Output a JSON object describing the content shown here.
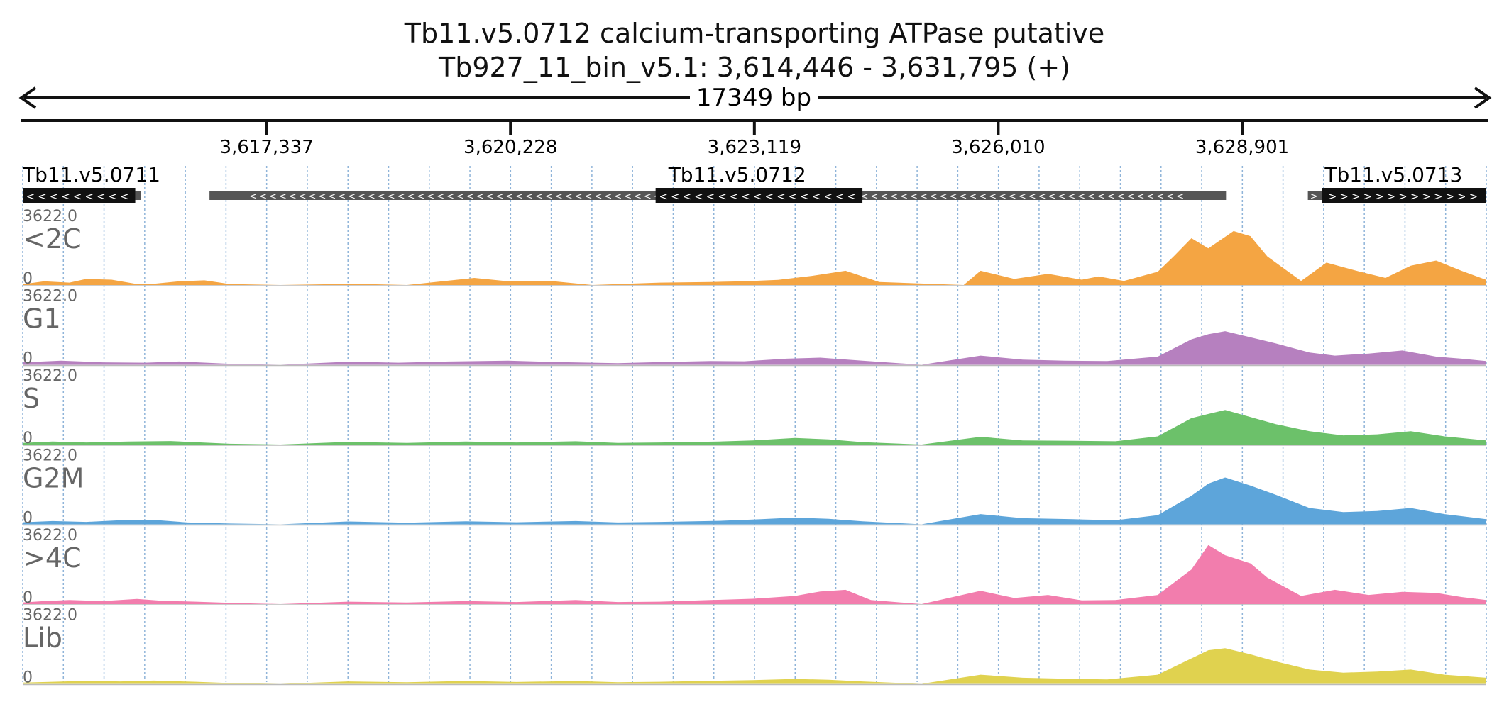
{
  "header": {
    "title": "Tb11.v5.0712  calcium-transporting ATPase  putative",
    "subtitle": "Tb927_11_bin_v5.1: 3,614,446 - 3,631,795 (+)",
    "span_label": "17349 bp"
  },
  "chart_data": {
    "type": "area",
    "region": {
      "chromosome": "Tb927_11_bin_v5.1",
      "start": 3614446,
      "end": 3631795,
      "strand": "+"
    },
    "ticks": [
      {
        "value": 3617337,
        "label": "3,617,337"
      },
      {
        "value": 3620228,
        "label": "3,620,228"
      },
      {
        "value": 3623119,
        "label": "3,623,119"
      },
      {
        "value": 3626010,
        "label": "3,626,010"
      },
      {
        "value": 3628901,
        "label": "3,628,901"
      }
    ],
    "genes": [
      {
        "name": "Tb11.v5.0711",
        "strand": "-",
        "cds": [
          3614446,
          3615780
        ],
        "utr": [
          3615780,
          3615850
        ],
        "label_at": 3614446
      },
      {
        "name": "Tb11.v5.0712",
        "strand": "-",
        "cds": [
          3621948,
          3624400
        ],
        "utr": [
          3616660,
          3628710
        ],
        "label_at": 3622100
      },
      {
        "name": "Tb11.v5.0713",
        "strand": "+",
        "cds": [
          3629850,
          3631795
        ],
        "utr": [
          3629680,
          3629850
        ],
        "label_at": 3629880
      }
    ],
    "ymax_label": "3622.0",
    "ymin_label": "0",
    "series": [
      {
        "name": "<2C",
        "color": "#f4a543",
        "points": [
          [
            3614446,
            40
          ],
          [
            3614700,
            180
          ],
          [
            3615000,
            120
          ],
          [
            3615200,
            300
          ],
          [
            3615500,
            260
          ],
          [
            3615800,
            50
          ],
          [
            3616000,
            60
          ],
          [
            3616300,
            180
          ],
          [
            3616600,
            230
          ],
          [
            3616900,
            50
          ],
          [
            3617500,
            0
          ],
          [
            3618400,
            60
          ],
          [
            3619000,
            0
          ],
          [
            3619800,
            350
          ],
          [
            3620200,
            180
          ],
          [
            3620700,
            200
          ],
          [
            3621200,
            0
          ],
          [
            3622000,
            120
          ],
          [
            3622600,
            150
          ],
          [
            3623000,
            180
          ],
          [
            3623400,
            250
          ],
          [
            3623800,
            450
          ],
          [
            3624200,
            700
          ],
          [
            3624600,
            150
          ],
          [
            3625600,
            0
          ],
          [
            3625800,
            700
          ],
          [
            3626200,
            300
          ],
          [
            3626600,
            550
          ],
          [
            3627000,
            260
          ],
          [
            3627200,
            420
          ],
          [
            3627500,
            200
          ],
          [
            3627900,
            650
          ],
          [
            3628100,
            1450
          ],
          [
            3628300,
            2300
          ],
          [
            3628500,
            1800
          ],
          [
            3628800,
            2650
          ],
          [
            3629000,
            2400
          ],
          [
            3629200,
            1400
          ],
          [
            3629600,
            200
          ],
          [
            3629900,
            1100
          ],
          [
            3630300,
            650
          ],
          [
            3630600,
            350
          ],
          [
            3630900,
            950
          ],
          [
            3631200,
            1200
          ],
          [
            3631500,
            700
          ],
          [
            3631795,
            250
          ]
        ]
      },
      {
        "name": "G1",
        "color": "#b680bf",
        "points": [
          [
            3614446,
            120
          ],
          [
            3614900,
            200
          ],
          [
            3615400,
            120
          ],
          [
            3615900,
            100
          ],
          [
            3616300,
            160
          ],
          [
            3616900,
            50
          ],
          [
            3617500,
            0
          ],
          [
            3618300,
            150
          ],
          [
            3618900,
            100
          ],
          [
            3619500,
            160
          ],
          [
            3620200,
            200
          ],
          [
            3620800,
            130
          ],
          [
            3621500,
            80
          ],
          [
            3622000,
            130
          ],
          [
            3622600,
            180
          ],
          [
            3623000,
            170
          ],
          [
            3623500,
            300
          ],
          [
            3623900,
            350
          ],
          [
            3624400,
            200
          ],
          [
            3625100,
            0
          ],
          [
            3625800,
            450
          ],
          [
            3626300,
            250
          ],
          [
            3626800,
            200
          ],
          [
            3627300,
            180
          ],
          [
            3627900,
            400
          ],
          [
            3628300,
            1250
          ],
          [
            3628500,
            1500
          ],
          [
            3628700,
            1650
          ],
          [
            3629000,
            1350
          ],
          [
            3629300,
            1050
          ],
          [
            3629700,
            600
          ],
          [
            3630000,
            450
          ],
          [
            3630400,
            550
          ],
          [
            3630800,
            700
          ],
          [
            3631200,
            400
          ],
          [
            3631500,
            300
          ],
          [
            3631795,
            180
          ]
        ]
      },
      {
        "name": "S",
        "color": "#6cc16a",
        "points": [
          [
            3614446,
            80
          ],
          [
            3614800,
            150
          ],
          [
            3615200,
            100
          ],
          [
            3615700,
            150
          ],
          [
            3616200,
            170
          ],
          [
            3616900,
            40
          ],
          [
            3617500,
            0
          ],
          [
            3618300,
            130
          ],
          [
            3619000,
            80
          ],
          [
            3619700,
            150
          ],
          [
            3620300,
            100
          ],
          [
            3621000,
            160
          ],
          [
            3621500,
            80
          ],
          [
            3622000,
            100
          ],
          [
            3622700,
            150
          ],
          [
            3623100,
            200
          ],
          [
            3623600,
            320
          ],
          [
            3624000,
            250
          ],
          [
            3624400,
            120
          ],
          [
            3625100,
            0
          ],
          [
            3625800,
            380
          ],
          [
            3626300,
            200
          ],
          [
            3626900,
            180
          ],
          [
            3627400,
            160
          ],
          [
            3627900,
            400
          ],
          [
            3628300,
            1300
          ],
          [
            3628500,
            1500
          ],
          [
            3628700,
            1700
          ],
          [
            3629000,
            1350
          ],
          [
            3629300,
            1000
          ],
          [
            3629700,
            650
          ],
          [
            3630100,
            450
          ],
          [
            3630500,
            500
          ],
          [
            3630900,
            650
          ],
          [
            3631300,
            400
          ],
          [
            3631795,
            200
          ]
        ]
      },
      {
        "name": "G2M",
        "color": "#5da5da",
        "points": [
          [
            3614446,
            100
          ],
          [
            3614800,
            160
          ],
          [
            3615200,
            120
          ],
          [
            3615600,
            200
          ],
          [
            3616000,
            220
          ],
          [
            3616400,
            90
          ],
          [
            3616900,
            40
          ],
          [
            3617500,
            0
          ],
          [
            3618300,
            140
          ],
          [
            3619000,
            80
          ],
          [
            3619700,
            150
          ],
          [
            3620300,
            100
          ],
          [
            3621000,
            160
          ],
          [
            3621500,
            90
          ],
          [
            3622000,
            120
          ],
          [
            3622700,
            170
          ],
          [
            3623200,
            250
          ],
          [
            3623600,
            330
          ],
          [
            3624000,
            270
          ],
          [
            3624400,
            150
          ],
          [
            3625100,
            0
          ],
          [
            3625800,
            500
          ],
          [
            3626300,
            300
          ],
          [
            3626900,
            250
          ],
          [
            3627400,
            200
          ],
          [
            3627900,
            450
          ],
          [
            3628300,
            1400
          ],
          [
            3628500,
            2000
          ],
          [
            3628700,
            2300
          ],
          [
            3629000,
            1900
          ],
          [
            3629300,
            1450
          ],
          [
            3629700,
            800
          ],
          [
            3630100,
            600
          ],
          [
            3630500,
            650
          ],
          [
            3630900,
            800
          ],
          [
            3631300,
            500
          ],
          [
            3631795,
            250
          ]
        ]
      },
      {
        "name": ">4C",
        "color": "#f27dad",
        "points": [
          [
            3614446,
            80
          ],
          [
            3614700,
            150
          ],
          [
            3615000,
            200
          ],
          [
            3615400,
            150
          ],
          [
            3615800,
            250
          ],
          [
            3616100,
            160
          ],
          [
            3616500,
            120
          ],
          [
            3616900,
            60
          ],
          [
            3617500,
            0
          ],
          [
            3618300,
            120
          ],
          [
            3619000,
            80
          ],
          [
            3619700,
            150
          ],
          [
            3620300,
            100
          ],
          [
            3621000,
            200
          ],
          [
            3621500,
            100
          ],
          [
            3622000,
            120
          ],
          [
            3622600,
            200
          ],
          [
            3623100,
            260
          ],
          [
            3623600,
            400
          ],
          [
            3623900,
            620
          ],
          [
            3624200,
            700
          ],
          [
            3624500,
            200
          ],
          [
            3625100,
            0
          ],
          [
            3625800,
            650
          ],
          [
            3626200,
            300
          ],
          [
            3626600,
            450
          ],
          [
            3627000,
            180
          ],
          [
            3627400,
            200
          ],
          [
            3627900,
            450
          ],
          [
            3628300,
            1700
          ],
          [
            3628500,
            2900
          ],
          [
            3628700,
            2400
          ],
          [
            3629000,
            2000
          ],
          [
            3629200,
            1300
          ],
          [
            3629600,
            400
          ],
          [
            3630000,
            700
          ],
          [
            3630400,
            450
          ],
          [
            3630800,
            600
          ],
          [
            3631200,
            550
          ],
          [
            3631500,
            350
          ],
          [
            3631795,
            200
          ]
        ]
      },
      {
        "name": "Lib",
        "color": "#e0d24f",
        "points": [
          [
            3614446,
            60
          ],
          [
            3614800,
            100
          ],
          [
            3615200,
            150
          ],
          [
            3615600,
            120
          ],
          [
            3616000,
            160
          ],
          [
            3616500,
            100
          ],
          [
            3616900,
            40
          ],
          [
            3617500,
            0
          ],
          [
            3618300,
            120
          ],
          [
            3619000,
            80
          ],
          [
            3619700,
            140
          ],
          [
            3620300,
            90
          ],
          [
            3621000,
            140
          ],
          [
            3621500,
            80
          ],
          [
            3622000,
            100
          ],
          [
            3622600,
            150
          ],
          [
            3623100,
            180
          ],
          [
            3623600,
            240
          ],
          [
            3624000,
            200
          ],
          [
            3624400,
            120
          ],
          [
            3625100,
            0
          ],
          [
            3625800,
            450
          ],
          [
            3626300,
            300
          ],
          [
            3626800,
            250
          ],
          [
            3627300,
            220
          ],
          [
            3627900,
            450
          ],
          [
            3628300,
            1250
          ],
          [
            3628500,
            1650
          ],
          [
            3628700,
            1750
          ],
          [
            3629000,
            1450
          ],
          [
            3629300,
            1100
          ],
          [
            3629700,
            700
          ],
          [
            3630100,
            550
          ],
          [
            3630500,
            600
          ],
          [
            3630900,
            700
          ],
          [
            3631300,
            450
          ],
          [
            3631795,
            300
          ]
        ]
      }
    ]
  }
}
